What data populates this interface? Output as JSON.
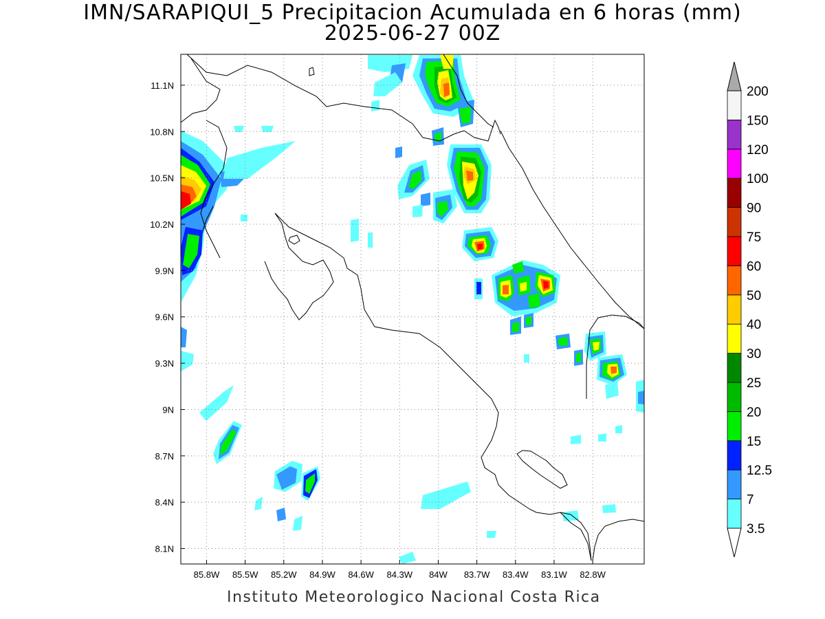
{
  "title_line1": "IMN/SARAPIQUI_5 Precipitacion Acumulada en 6 horas (mm)",
  "title_line2": "2025-06-27 00Z",
  "footer": "Instituto Meteorologico Nacional Costa Rica",
  "map": {
    "lon_range": [
      -86.0,
      -82.4
    ],
    "lat_range": [
      8.0,
      11.3
    ],
    "lon_ticks": [
      "85.8W",
      "85.5W",
      "85.2W",
      "84.9W",
      "84.6W",
      "84.3W",
      "84W",
      "83.7W",
      "83.4W",
      "83.1W",
      "82.8W"
    ],
    "lat_ticks": [
      "11.1N",
      "10.8N",
      "10.5N",
      "10.2N",
      "9.9N",
      "9.6N",
      "9.3N",
      "9N",
      "8.7N",
      "8.4N",
      "8.1N"
    ],
    "grid": "dotted"
  },
  "colorbar": {
    "levels": [
      "3.5",
      "7",
      "12.5",
      "15",
      "20",
      "25",
      "30",
      "40",
      "50",
      "60",
      "75",
      "90",
      "100",
      "120",
      "150",
      "200"
    ],
    "colors": [
      "#66ffff",
      "#3399ff",
      "#0022ff",
      "#00ee00",
      "#00bb00",
      "#008800",
      "#ffff00",
      "#ffcc00",
      "#ff6600",
      "#ff0000",
      "#cc3300",
      "#990000",
      "#ff00ff",
      "#9933cc",
      "#f5f5f5",
      "#aaaaaa"
    ]
  }
}
